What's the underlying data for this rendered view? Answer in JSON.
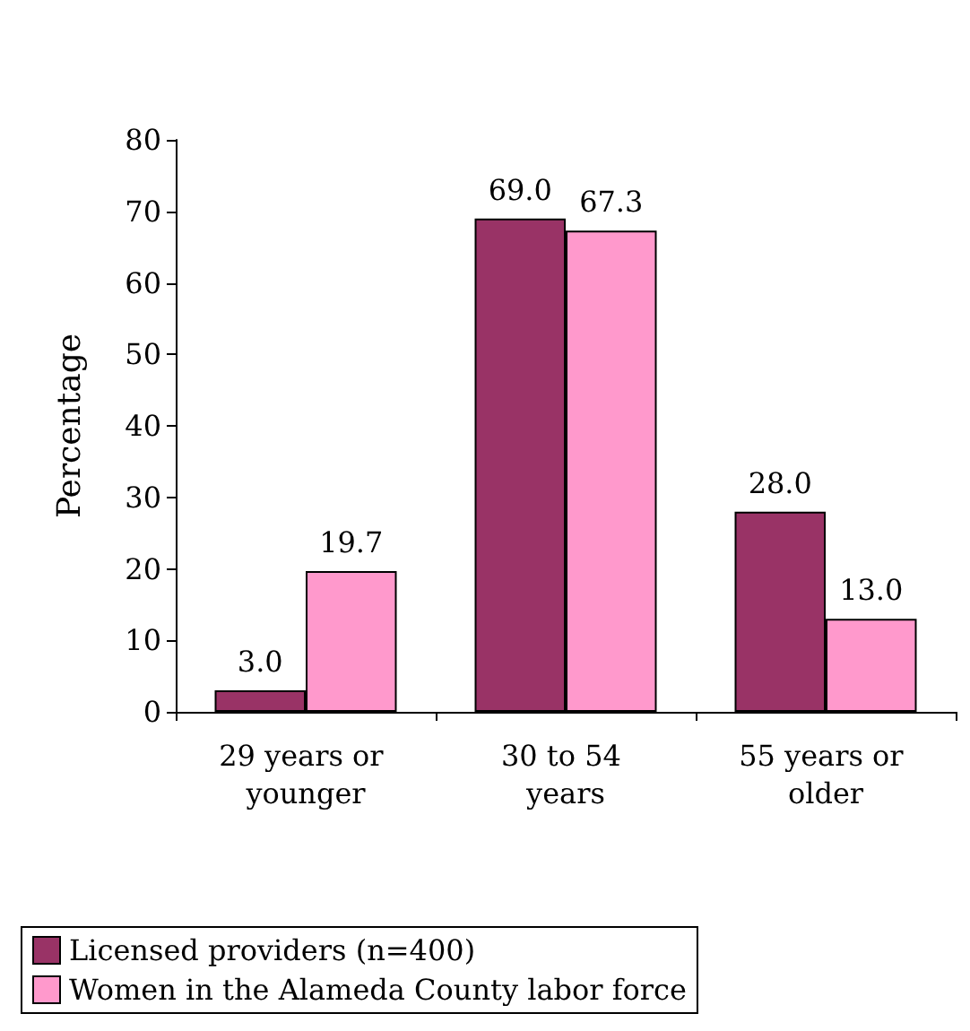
{
  "chart_data": {
    "type": "bar",
    "ylabel": "Percentage",
    "categories": [
      "29 years or younger",
      "30 to 54 years",
      "55 years or older"
    ],
    "series": [
      {
        "name": "Licensed providers (n=400)",
        "color": "#993366",
        "values": [
          3.0,
          69.0,
          28.0
        ],
        "value_labels": [
          "3.0",
          "69.0",
          "28.0"
        ]
      },
      {
        "name": "Women in the Alameda County labor force",
        "color": "#ff99cc",
        "values": [
          19.7,
          67.3,
          13.0
        ],
        "value_labels": [
          "19.7",
          "67.3",
          "13.0"
        ]
      }
    ],
    "ylim": [
      0,
      80
    ],
    "yticks": [
      0,
      10,
      20,
      30,
      40,
      50,
      60,
      70,
      80
    ],
    "grid": false,
    "legend": "bottom"
  }
}
